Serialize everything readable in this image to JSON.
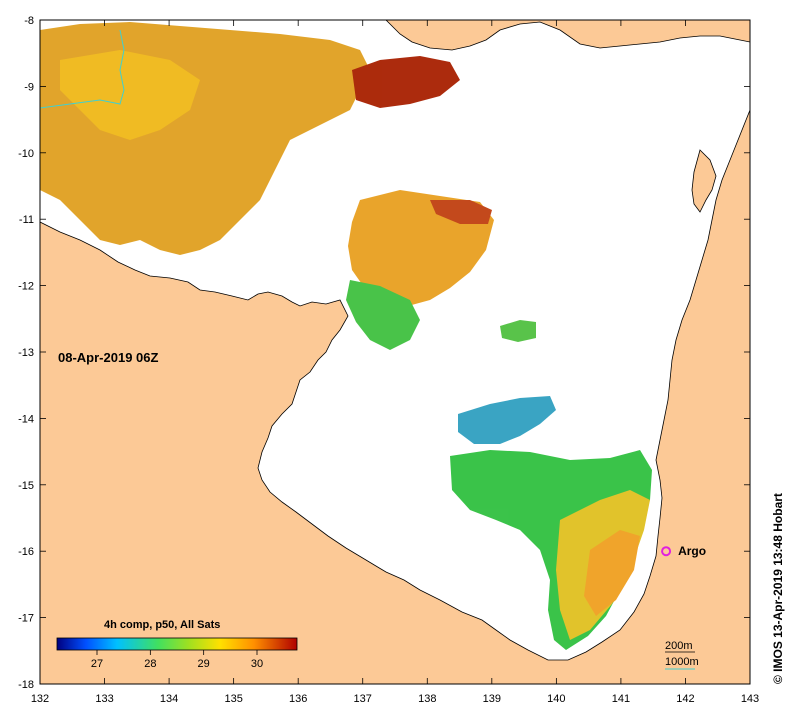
{
  "map": {
    "date_label": "08-Apr-2019 06Z",
    "copyright": "© IMOS 13-Apr-2019 13:48 Hobart",
    "argo_label": "Argo",
    "colors": {
      "land": "#fcc996",
      "sea": "#ffffff",
      "argo_marker": "#e020e0",
      "contour_1000m": "#40d0d0"
    },
    "x_axis": {
      "unit": "deg E",
      "range": [
        132,
        143
      ],
      "ticks": [
        "132",
        "133",
        "134",
        "135",
        "136",
        "137",
        "138",
        "139",
        "140",
        "141",
        "142",
        "143"
      ]
    },
    "y_axis": {
      "unit": "deg",
      "range": [
        -18,
        -8
      ],
      "ticks": [
        "-8",
        "-9",
        "-10",
        "-11",
        "-12",
        "-13",
        "-14",
        "-15",
        "-16",
        "-17",
        "-18"
      ]
    },
    "colorbar": {
      "title": "4h comp, p50, All Sats",
      "ticks": [
        "27",
        "28",
        "29",
        "30"
      ],
      "stops": [
        "#000080",
        "#0050ff",
        "#00c0ff",
        "#40e060",
        "#a0e020",
        "#ffe000",
        "#ff9000",
        "#b00000"
      ]
    },
    "depth_legend": {
      "line_200m": "200m",
      "line_1000m": "1000m"
    },
    "argo_float": {
      "lon": 141.7,
      "lat": -16.0
    }
  }
}
